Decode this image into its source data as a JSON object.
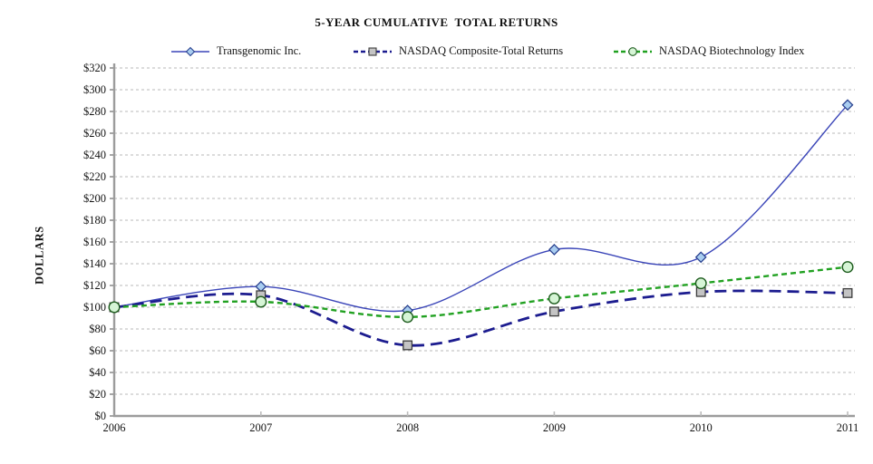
{
  "chart_data": {
    "type": "line",
    "title": "5-YEAR CUMULATIVE  TOTAL RETURNS",
    "ylabel": "DOLLARS",
    "xlabel": "",
    "x": [
      "2006",
      "2007",
      "2008",
      "2009",
      "2010",
      "2011"
    ],
    "y_ticks": [
      "$0",
      "$20",
      "$40",
      "$60",
      "$80",
      "$100",
      "$120",
      "$140",
      "$160",
      "$180",
      "$200",
      "$220",
      "$240",
      "$260",
      "$280",
      "$300",
      "$320"
    ],
    "y_tick_step": 20,
    "ylim": [
      0,
      320
    ],
    "grid": "horizontal-dashed-gray",
    "legend_position": "top",
    "line_smoothing": "spline",
    "axis_color": "#9c9c9c",
    "grid_color": "#b9b9b9",
    "series": [
      {
        "name": "Transgenomic Inc.",
        "values": [
          100,
          119,
          97,
          153,
          146,
          286
        ],
        "color": "#3a45b8",
        "style": "solid",
        "width": 1.4,
        "marker": "diamond",
        "marker_fill": "#a9cdf0",
        "marker_stroke": "#29418f"
      },
      {
        "name": "NASDAQ Composite-Total Returns",
        "values": [
          100,
          111,
          65,
          96,
          114,
          113
        ],
        "color": "#1c1c8f",
        "style": "dashed-long",
        "width": 2.8,
        "marker": "square",
        "marker_fill": "#c4c4c4",
        "marker_stroke": "#3c3c3c"
      },
      {
        "name": "NASDAQ Biotechnology Index",
        "values": [
          100,
          105,
          91,
          108,
          122,
          137
        ],
        "color": "#21a121",
        "style": "dashed-short",
        "width": 2.4,
        "marker": "circle",
        "marker_fill": "#d6f5d6",
        "marker_stroke": "#1e5c1e"
      }
    ]
  }
}
